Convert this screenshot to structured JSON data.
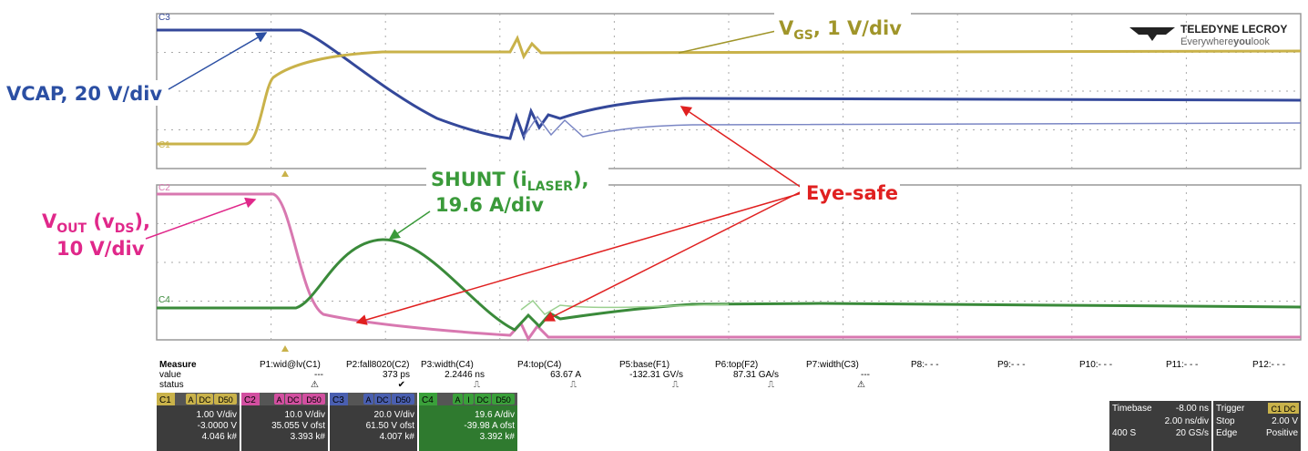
{
  "annotations": {
    "vcap": "VCAP, 20 V/div",
    "vgs": {
      "main": "V",
      "sub": "GS",
      "rest": ", 1 V/div"
    },
    "shunt": {
      "main": "SHUNT (i",
      "sub": "LASER",
      "rest": "),",
      "line2": "19.6 A/div"
    },
    "vout": {
      "main": "V",
      "sub": "OUT",
      "mid": " (v",
      "sub2": "DS",
      "rest": "),",
      "line2": "10 V/div"
    },
    "eye_safe": "Eye-safe"
  },
  "logo": {
    "name": "TELEDYNE LECROY",
    "tagline_a": "Everywhere",
    "tagline_b": "you",
    "tagline_c": "look"
  },
  "trace_tags": {
    "upper_top": "C3",
    "upper_bottom": "C1",
    "lower_top": "C2",
    "lower_bottom": "C4"
  },
  "measure": {
    "headers": [
      "Measure",
      "P1:wid@lv(C1)",
      "P2:fall8020(C2)",
      "P3:width(C4)",
      "P4:top(C4)",
      "P5:base(F1)",
      "P6:top(F2)",
      "P7:width(C3)",
      "P8:- - -",
      "P9:- - -",
      "P10:- - -",
      "P11:- - -",
      "P12:- - -"
    ],
    "values": [
      "value",
      "---",
      "373 ps",
      "2.2446 ns",
      "63.67 A",
      "-132.31 GV/s",
      "87.31 GA/s",
      "---"
    ],
    "status": [
      "status",
      "⚠",
      "✔",
      "⎍",
      "⎍",
      "⎍",
      "⎍",
      "⚠"
    ]
  },
  "channels": [
    {
      "id": "C1",
      "flags": [
        "A",
        "DC",
        "D50"
      ],
      "vdiv": "1.00 V/div",
      "ofst": "-3.0000 V",
      "count": "4.046 k#"
    },
    {
      "id": "C2",
      "flags": [
        "A",
        "DC",
        "D50"
      ],
      "vdiv": "10.0 V/div",
      "ofst": "35.055 V ofst",
      "count": "3.393 k#"
    },
    {
      "id": "C3",
      "flags": [
        "A",
        "DC",
        "D50"
      ],
      "vdiv": "20.0 V/div",
      "ofst": "61.50 V ofst",
      "count": "4.007 k#"
    },
    {
      "id": "C4",
      "flags": [
        "A",
        "I",
        "DC",
        "D50"
      ],
      "vdiv": "19.6 A/div",
      "ofst": "-39.98 A ofst",
      "count": "3.392 k#"
    }
  ],
  "timebase": {
    "label": "Timebase",
    "delay": "-8.00 ns",
    "div": "2.00 ns/div",
    "samples": "400 S",
    "rate": "20 GS/s"
  },
  "trigger": {
    "label": "Trigger",
    "ch": "C1 DC",
    "mode": "Stop",
    "level": "2.00 V",
    "type": "Edge",
    "slope": "Positive"
  }
}
